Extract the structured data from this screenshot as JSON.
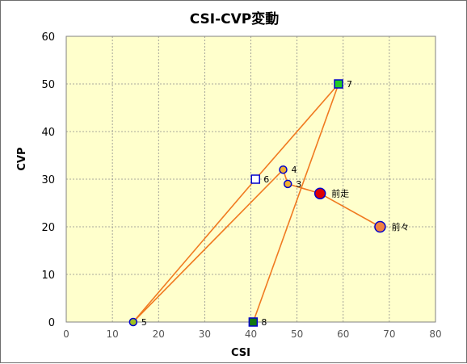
{
  "chart_data": {
    "type": "scatter",
    "title": "CSI-CVP変動",
    "xlabel": "CSI",
    "ylabel": "CVP",
    "xlim": [
      0,
      80
    ],
    "ylim": [
      0,
      60
    ],
    "xticks": [
      "0",
      "10",
      "20",
      "30",
      "40",
      "50",
      "60",
      "70",
      "80"
    ],
    "yticks": [
      "0",
      "10",
      "20",
      "30",
      "40",
      "50",
      "60"
    ],
    "grid": true,
    "plot_background": "#ffffcc",
    "line_color": "#f07a20",
    "points": [
      {
        "label": "前々",
        "x": 68,
        "y": 20,
        "marker": "circle-large",
        "fill": "#f08040",
        "stroke": "#0000cc"
      },
      {
        "label": "前走",
        "x": 55,
        "y": 27,
        "marker": "circle-large",
        "fill": "#dd0000",
        "stroke": "#0000cc"
      },
      {
        "label": "3",
        "x": 48,
        "y": 29,
        "marker": "circle",
        "fill": "#f0b030",
        "stroke": "#0000cc"
      },
      {
        "label": "4",
        "x": 47,
        "y": 32,
        "marker": "circle",
        "fill": "#f0b030",
        "stroke": "#0000cc"
      },
      {
        "label": "5",
        "x": 14.5,
        "y": 0,
        "marker": "circle",
        "fill": "#a0c020",
        "stroke": "#0000cc"
      },
      {
        "label": "6",
        "x": 41,
        "y": 30,
        "marker": "square",
        "fill": "#ffffff",
        "stroke": "#0000cc"
      },
      {
        "label": "7",
        "x": 59,
        "y": 50,
        "marker": "square",
        "fill": "#22cc22",
        "stroke": "#0000cc"
      },
      {
        "label": "8",
        "x": 40.5,
        "y": 0,
        "marker": "square",
        "fill": "#117711",
        "stroke": "#0000cc"
      }
    ]
  }
}
